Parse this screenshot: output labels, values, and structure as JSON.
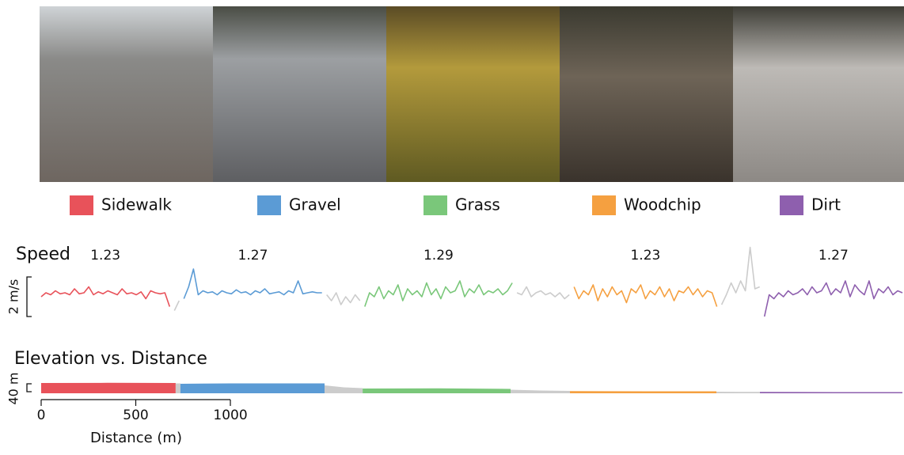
{
  "chart_data": [
    {
      "type": "line",
      "title": "Speed",
      "ylim": [
        -0.3,
        3.7
      ],
      "scale": {
        "value": 2,
        "label": "2 m/s"
      },
      "series": [
        {
          "name": "Sidewalk",
          "color": "#e8525a",
          "mean": 1.23,
          "values": [
            1.1,
            1.3,
            1.2,
            1.4,
            1.25,
            1.3,
            1.2,
            1.5,
            1.25,
            1.3,
            1.6,
            1.2,
            1.35,
            1.25,
            1.4,
            1.3,
            1.2,
            1.5,
            1.25,
            1.3,
            1.2,
            1.35,
            1.0,
            1.4,
            1.3,
            1.25,
            1.3,
            0.6
          ]
        },
        {
          "color": "#cccccc",
          "values": [
            0.4,
            0.9
          ]
        },
        {
          "name": "Gravel",
          "color": "#5b9bd5",
          "mean": 1.27,
          "values": [
            1.0,
            1.6,
            2.5,
            1.2,
            1.4,
            1.3,
            1.35,
            1.2,
            1.4,
            1.3,
            1.25,
            1.45,
            1.3,
            1.35,
            1.2,
            1.4,
            1.3,
            1.5,
            1.25,
            1.3,
            1.35,
            1.2,
            1.4,
            1.3,
            1.9,
            1.25,
            1.3,
            1.35,
            1.3,
            1.3
          ]
        },
        {
          "color": "#cccccc",
          "values": [
            1.2,
            0.9,
            1.3,
            0.7,
            1.1,
            0.8,
            1.2,
            0.9
          ]
        },
        {
          "name": "Grass",
          "color": "#7ac77a",
          "mean": 1.29,
          "values": [
            0.6,
            1.3,
            1.1,
            1.6,
            1.0,
            1.4,
            1.2,
            1.7,
            0.9,
            1.5,
            1.2,
            1.4,
            1.1,
            1.8,
            1.2,
            1.5,
            1.0,
            1.6,
            1.3,
            1.4,
            1.9,
            1.1,
            1.5,
            1.3,
            1.7,
            1.2,
            1.4,
            1.3,
            1.5,
            1.2,
            1.4,
            1.8
          ]
        },
        {
          "color": "#cccccc",
          "values": [
            1.3,
            1.2,
            1.6,
            1.1,
            1.3,
            1.4,
            1.2,
            1.3,
            1.1,
            1.3,
            1.0,
            1.2
          ]
        },
        {
          "name": "Woodchip",
          "color": "#f5a040",
          "mean": 1.23,
          "values": [
            1.6,
            1.0,
            1.4,
            1.2,
            1.7,
            0.9,
            1.5,
            1.1,
            1.6,
            1.2,
            1.4,
            0.8,
            1.5,
            1.3,
            1.7,
            1.0,
            1.4,
            1.2,
            1.6,
            1.1,
            1.5,
            0.9,
            1.4,
            1.3,
            1.6,
            1.2,
            1.5,
            1.1,
            1.4,
            1.3,
            0.6
          ]
        },
        {
          "color": "#cccccc",
          "values": [
            0.7,
            1.2,
            1.8,
            1.3,
            1.9,
            1.4,
            3.6,
            1.5,
            1.6
          ]
        },
        {
          "name": "Dirt",
          "color": "#8e5fae",
          "mean": 1.27,
          "values": [
            0.1,
            1.2,
            1.0,
            1.3,
            1.1,
            1.4,
            1.2,
            1.3,
            1.5,
            1.2,
            1.6,
            1.3,
            1.4,
            1.8,
            1.2,
            1.5,
            1.3,
            1.9,
            1.1,
            1.7,
            1.4,
            1.2,
            1.9,
            1.0,
            1.5,
            1.3,
            1.6,
            1.2,
            1.4,
            1.3
          ]
        }
      ]
    },
    {
      "type": "area",
      "title": "Elevation vs. Distance",
      "xlabel": "Distance (m)",
      "xlim": [
        0,
        4552
      ],
      "xticks": [
        0,
        500,
        1000
      ],
      "ylim": [
        0,
        60
      ],
      "scale": {
        "value": 40,
        "label": "40 m"
      },
      "series": [
        {
          "color": "#e8525a",
          "x": [
            0,
            350,
            711
          ],
          "values": [
            52,
            53,
            52
          ]
        },
        {
          "color": "#cccccc",
          "x": [
            711,
            736
          ],
          "values": [
            50,
            50
          ]
        },
        {
          "color": "#5b9bd5",
          "x": [
            736,
            1000,
            1250,
            1498
          ],
          "values": [
            48,
            50,
            50,
            50
          ]
        },
        {
          "color": "#cccccc",
          "x": [
            1498,
            1600,
            1699
          ],
          "values": [
            40,
            30,
            26
          ]
        },
        {
          "color": "#7ac77a",
          "x": [
            1699,
            2100,
            2481
          ],
          "values": [
            24,
            25,
            22
          ]
        },
        {
          "color": "#cccccc",
          "x": [
            2481,
            2640,
            2795
          ],
          "values": [
            18,
            14,
            12
          ]
        },
        {
          "color": "#f5a040",
          "x": [
            2795,
            3200,
            3569
          ],
          "values": [
            11,
            10,
            10
          ]
        },
        {
          "color": "#cccccc",
          "x": [
            3569,
            3700,
            3799
          ],
          "values": [
            8,
            7,
            7
          ]
        },
        {
          "color": "#8e5fae",
          "x": [
            3799,
            4200,
            4552
          ],
          "values": [
            7,
            6,
            6
          ]
        }
      ]
    }
  ]
}
